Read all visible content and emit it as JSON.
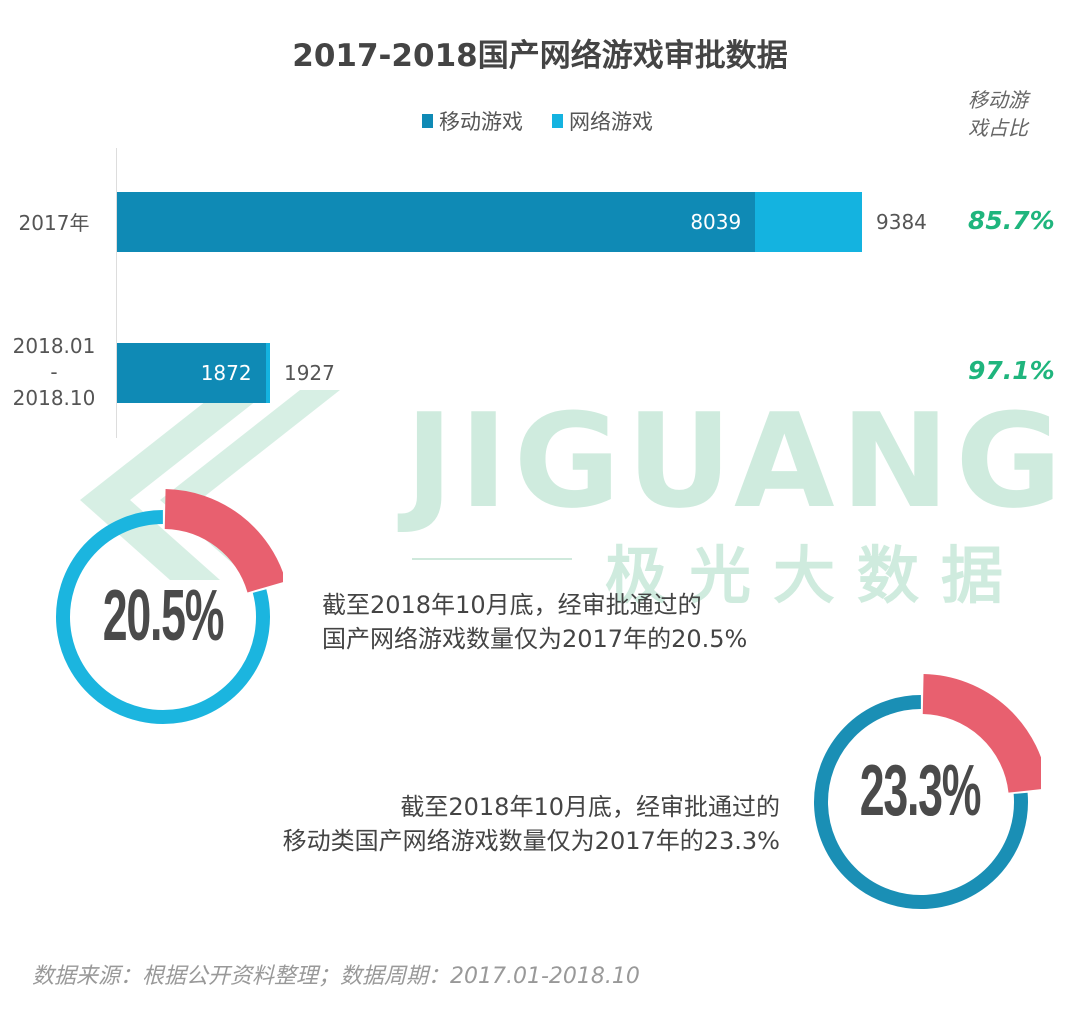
{
  "chart_data": {
    "type": "bar",
    "orientation": "horizontal",
    "stacked": true,
    "title": "2017-2018国产网络游戏审批数据",
    "categories": [
      "2017年",
      "2018.01\n-\n2018.10"
    ],
    "category_lines": [
      [
        "2017年"
      ],
      [
        "2018.01",
        "-",
        "2018.10"
      ]
    ],
    "series": [
      {
        "name": "移动游戏",
        "values": [
          8039,
          1872
        ],
        "color": "#0f8ab5"
      },
      {
        "name": "网络游戏",
        "values": [
          1345,
          55
        ],
        "color": "#14b3e0"
      }
    ],
    "totals": [
      9384,
      1927
    ],
    "mobile_labels": [
      "8039",
      "1872"
    ],
    "total_labels": [
      "9384",
      "1927"
    ],
    "share_header": [
      "移动游",
      "戏占比"
    ],
    "shares": [
      "85.7%",
      "97.1%"
    ],
    "legend_position": "top",
    "grid": false,
    "xlim": [
      0,
      9384
    ]
  },
  "donuts": [
    {
      "value": 20.5,
      "label": "20.5%",
      "ring_color": "#1bb5df",
      "highlight_color": "#e8606f",
      "text": [
        "截至2018年10月底，经审批通过的",
        "国产网络游戏数量仅为2017年的20.5%"
      ]
    },
    {
      "value": 23.3,
      "label": "23.3%",
      "ring_color": "#1a8fb5",
      "highlight_color": "#e8606f",
      "text": [
        "截至2018年10月底，经审批通过的",
        "移动类国产网络游戏数量仅为2017年的23.3%"
      ]
    }
  ],
  "watermark": {
    "en": "JIGUANG",
    "cn": "极光大数据"
  },
  "source": "数据来源：根据公开资料整理；数据周期：2017.01-2018.10",
  "colors": {
    "share_text": "#1fb57d",
    "watermark": "#bfe5d3"
  }
}
